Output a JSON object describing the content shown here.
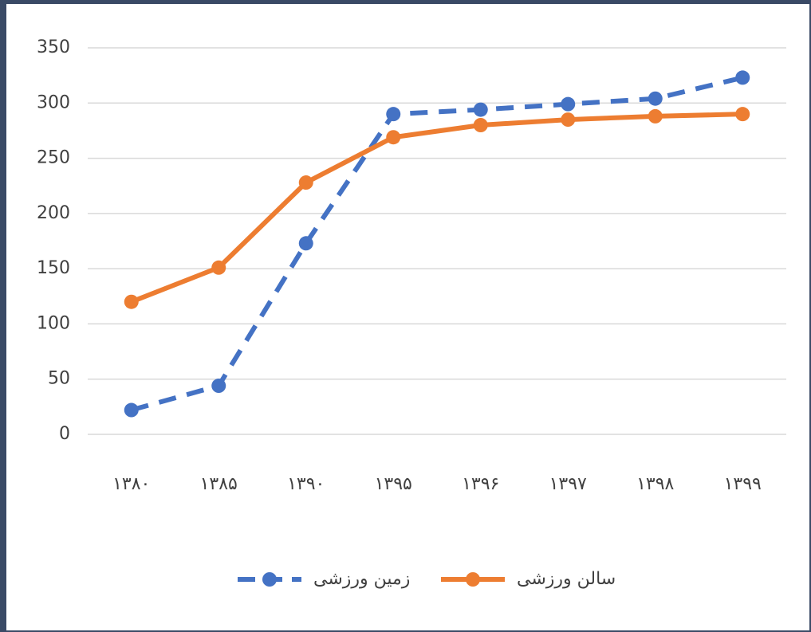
{
  "chart_data": {
    "type": "line",
    "categories": [
      "۱۳۸۰",
      "۱۳۸۵",
      "۱۳۹۰",
      "۱۳۹۵",
      "۱۳۹۶",
      "۱۳۹۷",
      "۱۳۹۸",
      "۱۳۹۹"
    ],
    "series": [
      {
        "name": "زمین ورزشی",
        "color": "#4472c4",
        "dashed": true,
        "values": [
          22,
          44,
          173,
          290,
          294,
          299,
          304,
          323
        ]
      },
      {
        "name": "سالن ورزشی",
        "color": "#ed7d31",
        "dashed": false,
        "values": [
          120,
          151,
          228,
          269,
          280,
          285,
          288,
          290
        ]
      }
    ],
    "ylim": [
      0,
      350
    ],
    "yticks": [
      0,
      50,
      100,
      150,
      200,
      250,
      300,
      350
    ],
    "grid": true,
    "legend": "bottom"
  }
}
